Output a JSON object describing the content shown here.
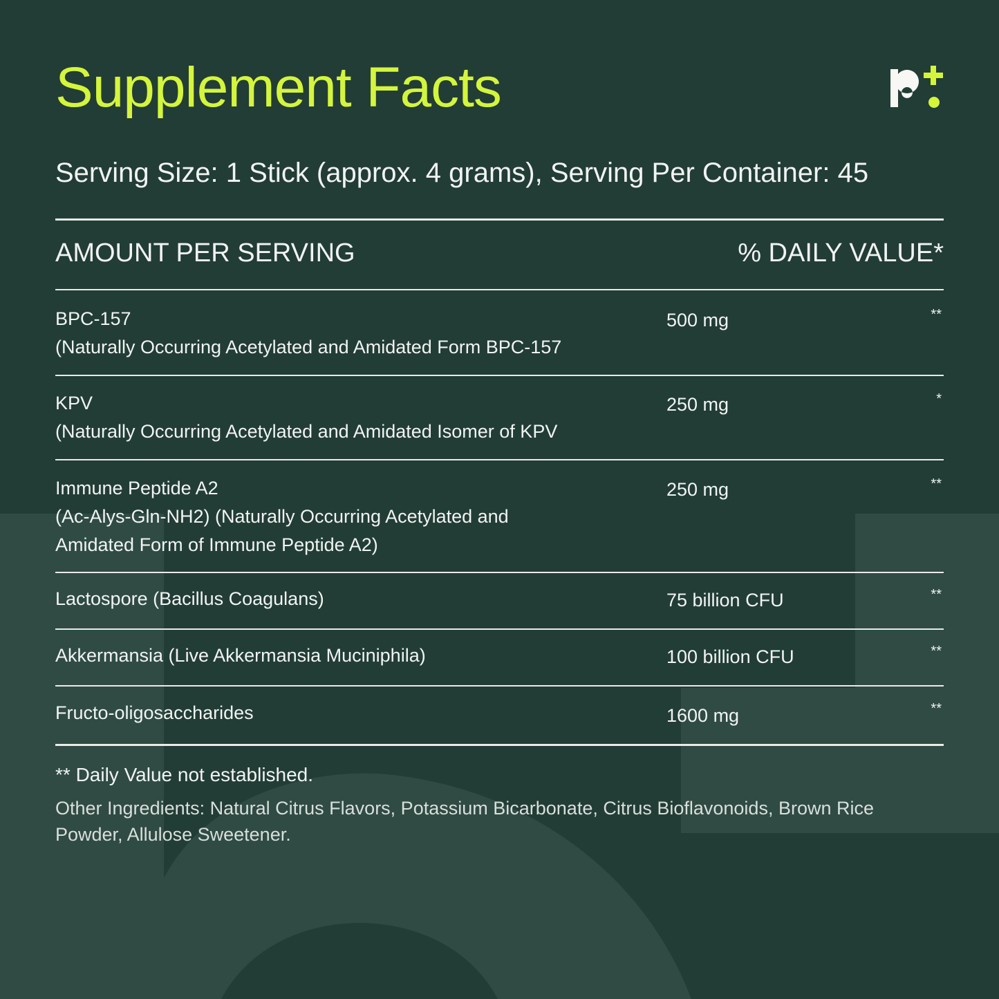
{
  "title": "Supplement Facts",
  "logo": {
    "text": "b+",
    "accent": "#d4f53c"
  },
  "serving": "Serving Size: 1 Stick (approx. 4 grams), Serving Per Container: 45",
  "header": {
    "left": "AMOUNT PER SERVING",
    "right": "% DAILY VALUE*"
  },
  "rows": [
    {
      "name": "BPC-157",
      "sub": "(Naturally Occurring Acetylated and Amidated Form BPC-157",
      "amount": "500 mg",
      "dv": "**"
    },
    {
      "name": "KPV",
      "sub": "(Naturally Occurring Acetylated and Amidated Isomer of KPV",
      "amount": "250 mg",
      "dv": "*"
    },
    {
      "name": "Immune Peptide A2",
      "sub": "(Ac-Alys-Gln-NH2) (Naturally Occurring Acetylated and Amidated Form of Immune Peptide A2)",
      "amount": "250 mg",
      "dv": "**"
    },
    {
      "name": "Lactospore (Bacillus Coagulans)",
      "amount": "75 billion CFU",
      "dv": "**"
    },
    {
      "name": "Akkermansia (Live Akkermansia Muciniphila)",
      "amount": "100 billion CFU",
      "dv": "**"
    },
    {
      "name": "Fructo-oligosaccharides",
      "amount": "1600 mg",
      "dv": "**"
    }
  ],
  "footnote": "** Daily Value not established.",
  "other": "Other Ingredients: Natural Citrus Flavors, Potassium Bicarbonate, Citrus Bioflavonoids, Brown Rice Powder, Allulose Sweetener.",
  "colors": {
    "background": "#223d36",
    "accent": "#d4f53c",
    "watermark": "#2f4b44"
  }
}
